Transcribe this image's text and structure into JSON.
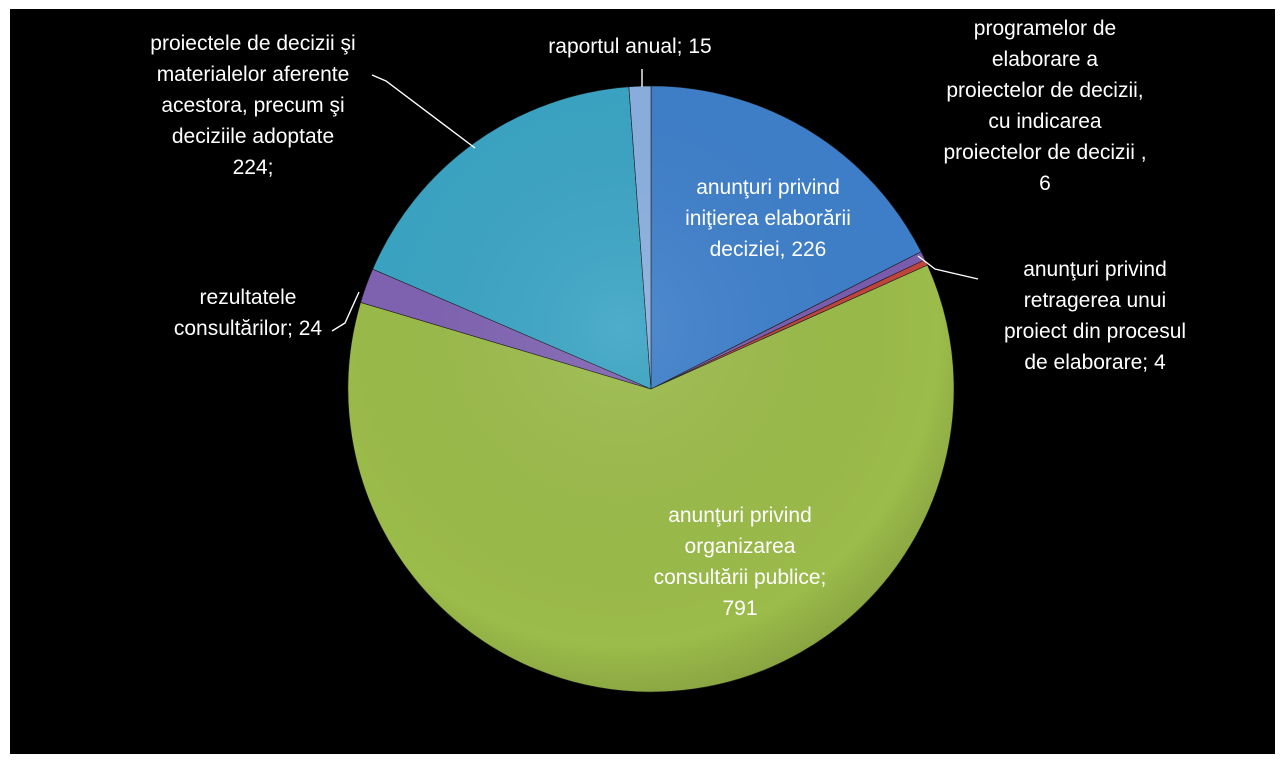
{
  "chart_data": {
    "type": "pie",
    "slices": [
      {
        "label": [
          "anunţuri privind",
          "iniţierea elaborării",
          "deciziei, 226"
        ],
        "value": 226,
        "color": "#3e7fca"
      },
      {
        "label": [
          "programelor de",
          "elaborare a",
          "proiectelor de decizii,",
          "cu indicarea",
          "proiectelor de decizii ,",
          "6"
        ],
        "value": 6,
        "color": "#7a5cae"
      },
      {
        "label": [
          "anunţuri privind",
          "retragerea unui",
          "proiect din procesul",
          "de elaborare; 4"
        ],
        "value": 4,
        "color": "#c0453c"
      },
      {
        "label": [
          "anunţuri privind",
          "organizarea",
          "consultării publice;",
          "791"
        ],
        "value": 791,
        "color": "#9bbb4a"
      },
      {
        "label": [
          "rezultatele",
          "consultărilor; 24"
        ],
        "value": 24,
        "color": "#7f62b2"
      },
      {
        "label": [
          "proiectele de decizii şi",
          "materialelor aferente",
          "acestora, precum şi",
          "deciziile adoptate",
          "224;"
        ],
        "value": 224,
        "color": "#3aa4c4"
      },
      {
        "label": [
          "raportul anual; 15"
        ],
        "value": 15,
        "color": "#8ab0e0"
      }
    ]
  }
}
